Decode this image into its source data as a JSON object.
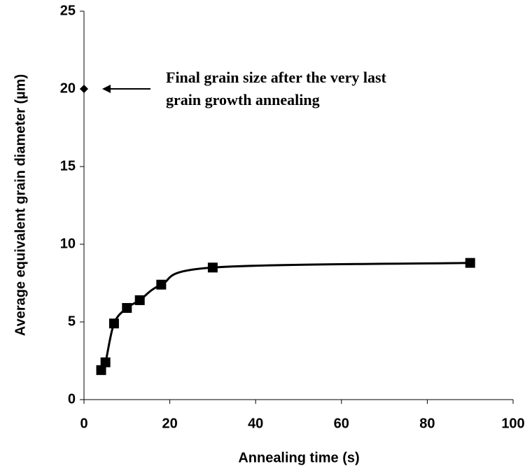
{
  "chart_data": {
    "type": "line",
    "x_label": "Annealing time (s)",
    "y_label": "Average equivalent grain diameter (µm)",
    "series": [
      {
        "marker": "square",
        "line": true,
        "color": "#000000",
        "x": [
          4,
          5,
          7,
          10,
          13,
          18,
          30,
          90
        ],
        "values": [
          1.9,
          2.4,
          4.9,
          5.9,
          6.4,
          7.4,
          8.5,
          8.8
        ]
      },
      {
        "marker": "diamond",
        "line": false,
        "color": "#000000",
        "x": [
          0
        ],
        "values": [
          20
        ]
      }
    ],
    "annotation": [
      "Final grain size after the very last",
      "grain growth annealing"
    ],
    "xlim": [
      0,
      100
    ],
    "xticks": [
      0,
      20,
      40,
      60,
      80,
      100
    ],
    "ylim": [
      0,
      25
    ],
    "yticks": [
      0,
      5,
      10,
      15,
      20,
      25
    ],
    "grid": false
  }
}
